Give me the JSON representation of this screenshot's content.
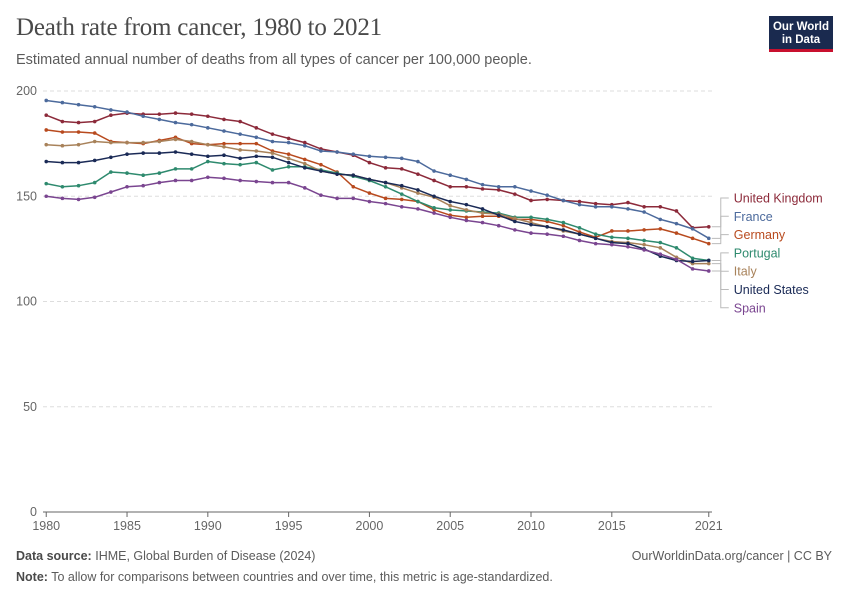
{
  "header": {
    "title": "Death rate from cancer, 1980 to 2021",
    "subtitle": "Estimated annual number of deaths from all types of cancer per 100,000 people."
  },
  "logo": {
    "line1": "Our World",
    "line2": "in Data"
  },
  "footer": {
    "source_label": "Data source:",
    "source_text": "IHME, Global Burden of Disease (2024)",
    "note_label": "Note:",
    "note_text": "To allow for comparisons between countries and over time, this metric is age-standardized.",
    "credit": "OurWorldinData.org/cancer | CC BY"
  },
  "colors": {
    "grid": "#dddddd",
    "axis": "#666666"
  },
  "chart_data": {
    "type": "line",
    "x": [
      1980,
      1981,
      1982,
      1983,
      1984,
      1985,
      1986,
      1987,
      1988,
      1989,
      1990,
      1991,
      1992,
      1993,
      1994,
      1995,
      1996,
      1997,
      1998,
      1999,
      2000,
      2001,
      2002,
      2003,
      2004,
      2005,
      2006,
      2007,
      2008,
      2009,
      2010,
      2011,
      2012,
      2013,
      2014,
      2015,
      2016,
      2017,
      2018,
      2019,
      2020,
      2021
    ],
    "xlim": [
      1979.8,
      2021.2
    ],
    "ylim": [
      0,
      200
    ],
    "yticks": [
      0,
      50,
      100,
      150,
      200
    ],
    "xticks": [
      1980,
      1985,
      1990,
      1995,
      2000,
      2005,
      2010,
      2015,
      2021
    ],
    "grid": true,
    "legend": "right",
    "series": [
      {
        "name": "United Kingdom",
        "color": "#8c2a3a",
        "values": [
          188.5,
          185.5,
          185,
          185.5,
          188.5,
          189.5,
          189,
          189,
          189.5,
          189,
          188,
          186.5,
          185.5,
          182.5,
          179.5,
          177.5,
          175.5,
          172.5,
          171,
          169.5,
          166,
          163.5,
          163,
          160.5,
          157.5,
          154.5,
          154.5,
          153.5,
          153,
          151,
          148,
          148.5,
          148,
          147.5,
          146.5,
          146,
          147,
          145,
          145,
          143,
          135,
          135.5
        ]
      },
      {
        "name": "France",
        "color": "#4c6a9c",
        "values": [
          195.5,
          194.5,
          193.5,
          192.5,
          191,
          190,
          188,
          186.5,
          185,
          184,
          182.5,
          181,
          179.5,
          178,
          176,
          175.5,
          174,
          171.5,
          171,
          170,
          169,
          168.5,
          168,
          166.5,
          162,
          160,
          158,
          155.5,
          154.5,
          154.5,
          152.5,
          150.5,
          148,
          146,
          145,
          145,
          144,
          142.5,
          139,
          137,
          134.5,
          130
        ]
      },
      {
        "name": "Germany",
        "color": "#b84a1e",
        "values": [
          181.5,
          180.5,
          180.5,
          180,
          176,
          175.5,
          175,
          176.5,
          178,
          175,
          174.5,
          175,
          175,
          175,
          171.5,
          170,
          167.5,
          165,
          161.5,
          154.5,
          151.5,
          149,
          148.5,
          147.5,
          143.5,
          141,
          140,
          140.5,
          140.5,
          139,
          139,
          138,
          136,
          133,
          130.5,
          133.5,
          133.5,
          134,
          134.5,
          132.5,
          130,
          127.5
        ]
      },
      {
        "name": "Portugal",
        "color": "#2e8a6e",
        "values": [
          156,
          154.5,
          155,
          156.5,
          161.5,
          161,
          160,
          161,
          163,
          163,
          166.5,
          165.5,
          165,
          166,
          162.5,
          164,
          164,
          162.5,
          161,
          159.5,
          157.5,
          154.5,
          151,
          147.5,
          144.5,
          143.5,
          143,
          142.5,
          142,
          140,
          140,
          139,
          137.5,
          135,
          132,
          130.5,
          130,
          129,
          128,
          125.5,
          120.5,
          119.5
        ]
      },
      {
        "name": "Italy",
        "color": "#a8825a",
        "values": [
          174.5,
          174,
          174.5,
          176,
          175.5,
          175.5,
          175.5,
          176,
          177,
          176,
          174.5,
          173.5,
          172,
          171.5,
          170.5,
          168,
          165.5,
          162,
          160.5,
          160,
          158,
          156.5,
          154,
          151.5,
          149.5,
          145.5,
          143.5,
          142,
          141.5,
          139.5,
          137.5,
          135.5,
          133.5,
          132,
          130,
          128.5,
          128,
          127,
          125.5,
          121,
          118,
          118
        ]
      },
      {
        "name": "United States",
        "color": "#1a2a56",
        "values": [
          166.5,
          166,
          166,
          167,
          168.5,
          170,
          170.5,
          170.5,
          171,
          170,
          169,
          169.5,
          168,
          169,
          168.5,
          166,
          163.5,
          162,
          160.5,
          160,
          158,
          156.5,
          155,
          153,
          150,
          147.5,
          146,
          144,
          141,
          138,
          136.5,
          135.5,
          134,
          132,
          130,
          128,
          127.5,
          125,
          121.5,
          119.5,
          119,
          119.5
        ]
      },
      {
        "name": "Spain",
        "color": "#7a4590",
        "values": [
          150,
          149,
          148.5,
          149.5,
          152,
          154.5,
          155,
          156.5,
          157.5,
          157.5,
          159,
          158.5,
          157.5,
          157,
          156.5,
          156.5,
          154,
          150.5,
          149,
          149,
          147.5,
          146.5,
          145,
          144,
          142,
          140,
          138.5,
          137.5,
          136,
          134,
          132.5,
          132,
          131,
          129,
          127.5,
          127,
          126,
          124.5,
          122.5,
          120,
          115.5,
          114.5
        ]
      }
    ]
  }
}
